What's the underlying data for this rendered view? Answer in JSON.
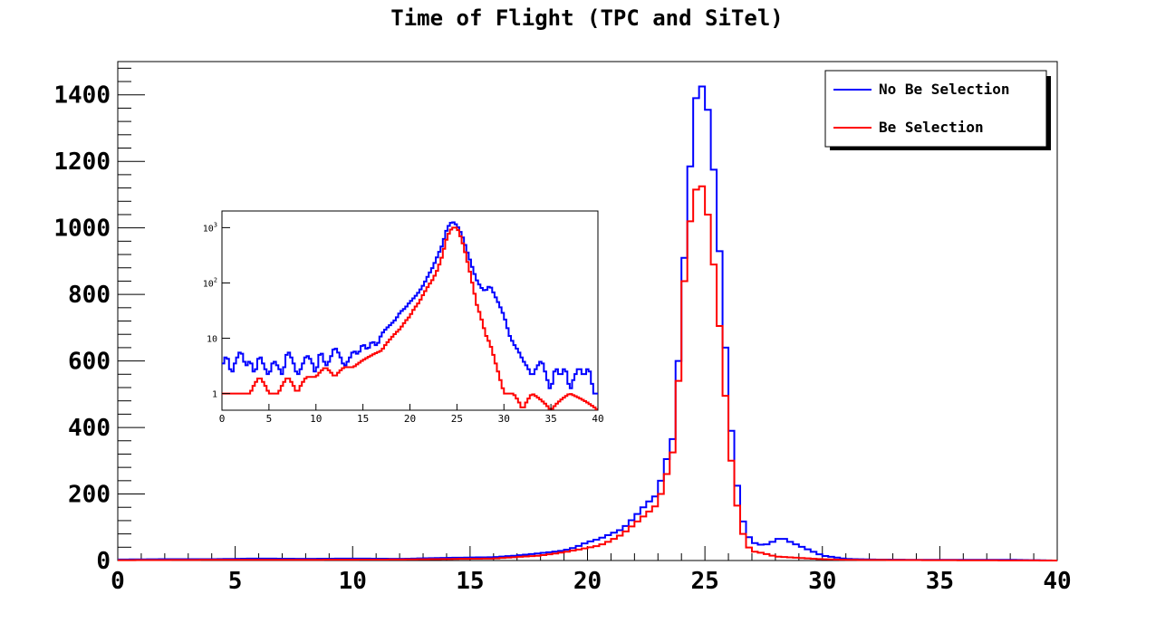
{
  "chart_data": [
    {
      "type": "histogram",
      "title": "Time of Flight (TPC and SiTel)",
      "xlabel": "",
      "ylabel": "",
      "xlim": [
        0,
        40
      ],
      "ylim": [
        0,
        1500
      ],
      "x_ticks": [
        "0",
        "5",
        "10",
        "15",
        "20",
        "25",
        "30",
        "35",
        "40"
      ],
      "y_ticks": [
        "0",
        "200",
        "400",
        "600",
        "800",
        "1000",
        "1200",
        "1400"
      ],
      "grid": false,
      "legend_position": "top-right",
      "bin_width": 0.25,
      "colors": {
        "no_be": "#0000ff",
        "be": "#ff0000"
      },
      "series": [
        {
          "name": "No Be Selection",
          "x": [
            0,
            2,
            4,
            6,
            8,
            10,
            12,
            14,
            16,
            17,
            18,
            19,
            19.5,
            20,
            20.5,
            21,
            21.5,
            22,
            22.5,
            23,
            23.25,
            23.5,
            23.75,
            24,
            24.25,
            24.5,
            24.75,
            25,
            25.25,
            25.5,
            25.75,
            26,
            26.25,
            26.5,
            26.75,
            27,
            27.5,
            28,
            28.25,
            28.5,
            29,
            29.5,
            30,
            30.5,
            31,
            32,
            34,
            36,
            38,
            40
          ],
          "values": [
            3,
            4,
            4,
            6,
            5,
            6,
            5,
            8,
            10,
            15,
            22,
            30,
            40,
            55,
            65,
            80,
            95,
            130,
            170,
            200,
            280,
            330,
            400,
            800,
            1020,
            1350,
            1430,
            1420,
            1290,
            1060,
            800,
            480,
            300,
            150,
            85,
            55,
            45,
            60,
            70,
            60,
            45,
            30,
            15,
            10,
            5,
            3,
            2,
            2,
            2,
            0
          ]
        },
        {
          "name": "Be Selection",
          "x": [
            0,
            4,
            8,
            12,
            16,
            18,
            19,
            20,
            20.5,
            21,
            21.5,
            22,
            22.5,
            23,
            23.25,
            23.5,
            23.75,
            24,
            24.25,
            24.5,
            24.75,
            25,
            25.25,
            25.5,
            25.75,
            26,
            26.25,
            26.5,
            26.75,
            27,
            27.5,
            28,
            29,
            30,
            31,
            35,
            40
          ],
          "values": [
            1,
            2,
            2,
            3,
            6,
            15,
            25,
            38,
            45,
            60,
            80,
            110,
            140,
            170,
            230,
            290,
            360,
            720,
            960,
            1080,
            1150,
            1100,
            980,
            800,
            610,
            380,
            220,
            110,
            50,
            28,
            22,
            12,
            8,
            4,
            2,
            1,
            0
          ]
        }
      ]
    },
    {
      "type": "histogram",
      "title": "",
      "xlim": [
        0,
        40
      ],
      "ylim": [
        0.5,
        2000
      ],
      "y_scale": "log",
      "x_ticks": [
        "0",
        "5",
        "10",
        "15",
        "20",
        "25",
        "30",
        "35",
        "40"
      ],
      "y_ticks": [
        "1",
        "10",
        "10^2",
        "10^3"
      ],
      "grid": false,
      "bin_width": 0.25,
      "colors": {
        "no_be": "#0000ff",
        "be": "#ff0000"
      },
      "series": [
        {
          "name": "No Be Selection",
          "x": [
            0,
            0.5,
            1,
            1.5,
            2,
            2.5,
            3,
            3.5,
            4,
            4.5,
            5,
            5.5,
            6,
            6.5,
            7,
            7.5,
            8,
            8.5,
            9,
            9.5,
            10,
            10.5,
            11,
            11.5,
            12,
            12.5,
            13,
            13.5,
            14,
            14.5,
            15,
            15.5,
            16,
            16.5,
            17,
            17.5,
            18,
            18.5,
            19,
            19.5,
            20,
            20.5,
            21,
            21.5,
            22,
            22.5,
            23,
            23.5,
            24,
            24.5,
            25,
            25.5,
            26,
            26.5,
            27,
            27.5,
            28,
            28.5,
            29,
            29.5,
            30,
            30.5,
            31,
            31.5,
            32,
            32.5,
            33,
            33.5,
            34,
            34.5,
            35,
            35.5,
            36,
            36.5,
            37,
            37.5,
            38,
            38.5,
            39,
            39.5,
            40
          ],
          "values": [
            3,
            5,
            2,
            4,
            6,
            3,
            4,
            2,
            5,
            3,
            2,
            4,
            3,
            2,
            6,
            4,
            2,
            3,
            5,
            4,
            2,
            6,
            3,
            4,
            7,
            5,
            3,
            4,
            6,
            5,
            8,
            6,
            9,
            7,
            12,
            15,
            18,
            22,
            30,
            35,
            45,
            55,
            70,
            95,
            140,
            200,
            320,
            500,
            1000,
            1300,
            1100,
            750,
            400,
            220,
            120,
            85,
            70,
            90,
            60,
            40,
            25,
            12,
            8,
            6,
            4,
            3,
            2,
            3,
            4,
            2,
            1,
            3,
            2,
            3,
            1,
            2,
            3,
            2,
            3,
            1,
            1
          ]
        },
        {
          "name": "Be Selection",
          "x": [
            0,
            1,
            2,
            3,
            4,
            5,
            6,
            7,
            8,
            9,
            10,
            11,
            12,
            13,
            14,
            15,
            16,
            17,
            18,
            19,
            20,
            20.5,
            21,
            21.5,
            22,
            22.5,
            23,
            23.5,
            24,
            24.5,
            25,
            25.5,
            26,
            26.5,
            27,
            27.5,
            28,
            28.5,
            29,
            29.5,
            30,
            31,
            32,
            33,
            35,
            37,
            40
          ],
          "values": [
            1,
            1,
            1,
            1,
            2,
            1,
            1,
            2,
            1,
            2,
            2,
            3,
            2,
            3,
            3,
            4,
            5,
            6,
            10,
            15,
            25,
            35,
            45,
            65,
            90,
            120,
            180,
            320,
            700,
            1000,
            1000,
            600,
            280,
            120,
            45,
            25,
            12,
            8,
            4,
            2,
            1,
            1,
            0.5,
            1,
            0.5,
            1,
            0.5
          ]
        }
      ]
    }
  ],
  "legend": {
    "items": [
      {
        "label": "No Be Selection",
        "color": "#0000ff"
      },
      {
        "label": "Be Selection",
        "color": "#ff0000"
      }
    ]
  }
}
